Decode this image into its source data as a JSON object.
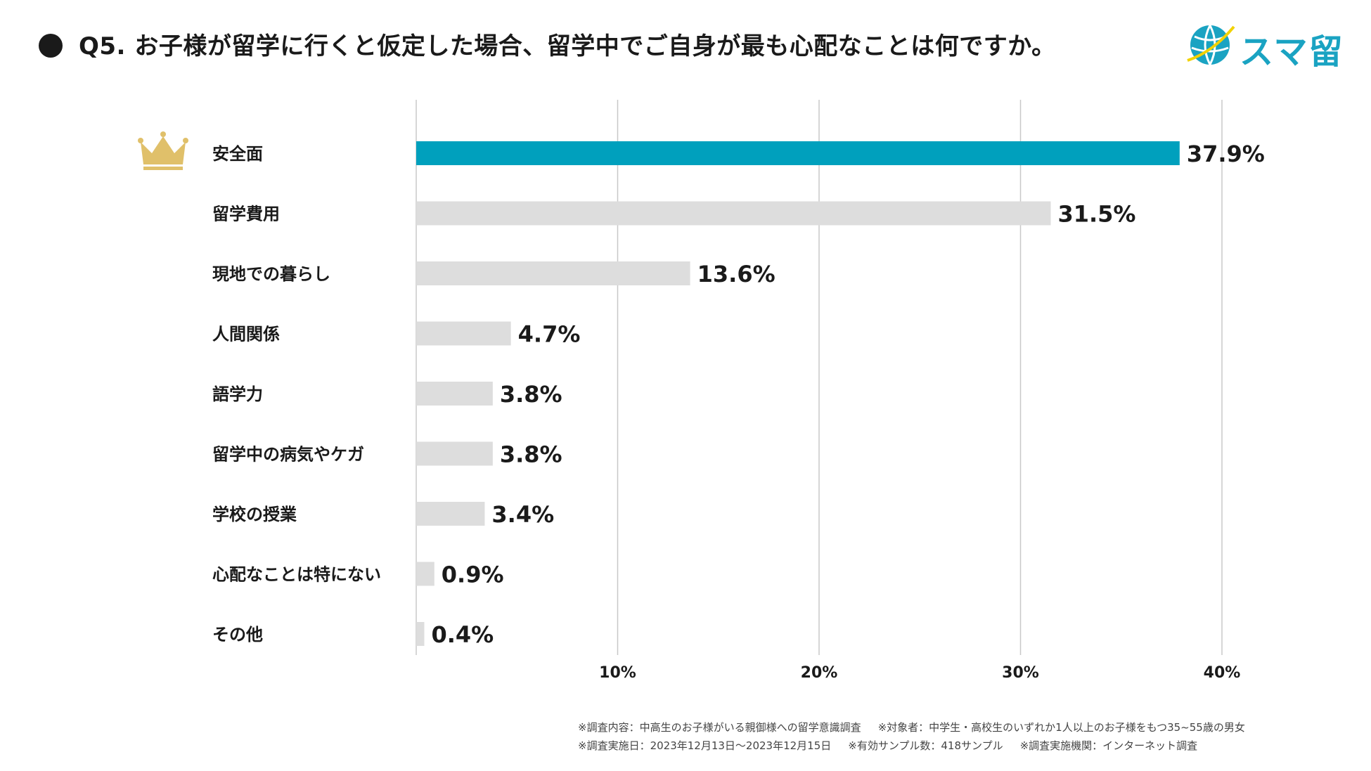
{
  "header": {
    "title": "Q5. お子様が留学に行くと仮定した場合、留学中でご自身が最も心配なことは何ですか。",
    "logo_text": "スマ留"
  },
  "chart_data": {
    "type": "bar",
    "orientation": "horizontal",
    "categories": [
      "安全面",
      "留学費用",
      "現地での暮らし",
      "人間関係",
      "語学力",
      "留学中の病気やケガ",
      "学校の授業",
      "心配なことは特にない",
      "その他"
    ],
    "values": [
      37.9,
      31.5,
      13.6,
      4.7,
      3.8,
      3.8,
      3.4,
      0.9,
      0.4
    ],
    "value_labels": [
      "37.9%",
      "31.5%",
      "13.6%",
      "4.7%",
      "3.8%",
      "3.8%",
      "3.4%",
      "0.9%",
      "0.4%"
    ],
    "xticks": [
      10,
      20,
      30,
      40
    ],
    "xtick_labels": [
      "10%",
      "20%",
      "30%",
      "40%"
    ],
    "xlim": [
      0,
      40
    ],
    "grid": true,
    "highlight_index": 0,
    "highlight_icon": "crown-icon",
    "colors": {
      "highlight": "#00a0bd",
      "bar": "#dddddd",
      "grid": "#c8c8c8",
      "crown": "#e0c06a"
    }
  },
  "footnotes": {
    "line1": [
      "※調査内容：中高生のお子様がいる親御様への留学意識調査",
      "※対象者：中学生・高校生のいずれか1人以上のお子様をもつ35~55歳の男女"
    ],
    "line2": [
      "※調査実施日：2023年12月13日〜2023年12月15日",
      "※有効サンプル数：418サンプル",
      "※調査実施機関：インターネット調査"
    ]
  }
}
